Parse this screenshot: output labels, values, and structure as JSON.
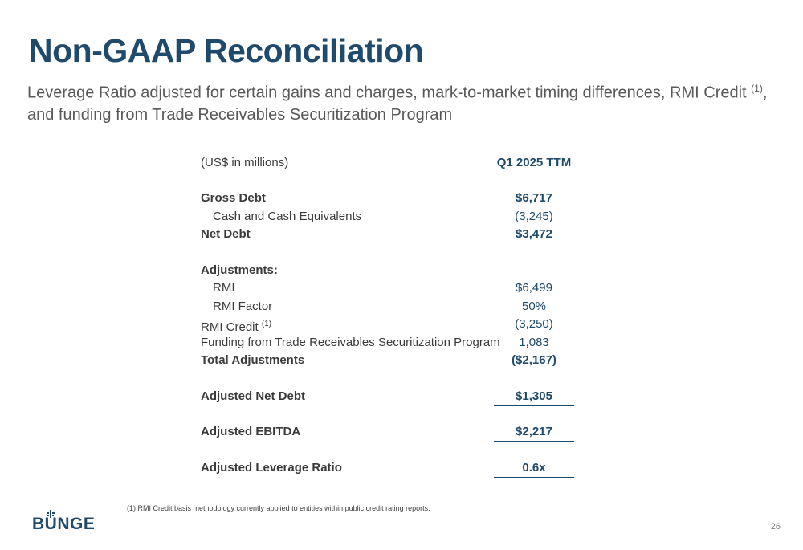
{
  "slide": {
    "title": "Non-GAAP Reconciliation",
    "subtitle_main": "Leverage Ratio adjusted for certain gains and charges, mark-to-market timing differences, RMI Credit ",
    "subtitle_sup": "(1)",
    "subtitle_end": ", and funding from Trade Receivables Securitization Program",
    "page_number": "26",
    "logo_text": "BUNGE"
  },
  "table": {
    "units_label": "(US$ in millions)",
    "period_header": "Q1 2025 TTM",
    "gross_debt": {
      "label": "Gross Debt",
      "value": "$6,717"
    },
    "cash": {
      "label": "Cash and Cash Equivalents",
      "value": "(3,245)"
    },
    "net_debt": {
      "label": "Net Debt",
      "value": "$3,472"
    },
    "adjustments_header": "Adjustments:",
    "rmi": {
      "label": "RMI",
      "value": "$6,499"
    },
    "rmi_factor": {
      "label": "RMI Factor",
      "value": "50%"
    },
    "rmi_credit": {
      "label": "RMI Credit ",
      "sup": "(1)",
      "value": "(3,250)"
    },
    "funding": {
      "label": "Funding from Trade Receivables Securitization Program",
      "value": "1,083"
    },
    "total_adjustments": {
      "label": "Total Adjustments",
      "value": "($2,167)"
    },
    "adjusted_net_debt": {
      "label": "Adjusted Net Debt",
      "value": "$1,305"
    },
    "adjusted_ebitda": {
      "label": "Adjusted EBITDA",
      "value": "$2,217"
    },
    "adjusted_leverage": {
      "label": "Adjusted Leverage Ratio",
      "value": "0.6x"
    }
  },
  "footnote": "(1)  RMI Credit basis methodology currently applied to entities within public credit rating reports."
}
